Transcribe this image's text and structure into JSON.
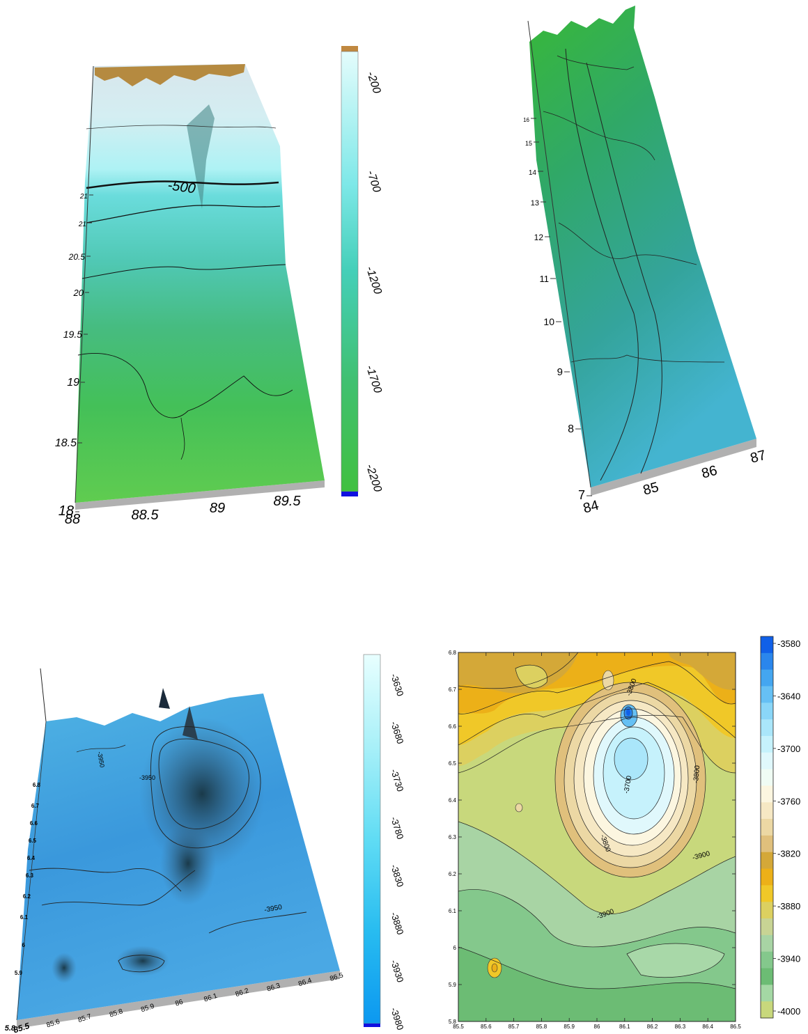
{
  "chart_data": [
    {
      "type": "surface3d",
      "title": "",
      "x_ticks": [
        "88",
        "88.5",
        "89",
        "89.5"
      ],
      "y_ticks": [
        "18",
        "18.5",
        "19",
        "19.5",
        "20",
        "20.5",
        "21",
        "21"
      ],
      "contour_label": "-500",
      "colorbar": {
        "ticks": [
          "-200",
          "-700",
          "-1200",
          "-1700",
          "-2200"
        ],
        "colors": [
          "#c08840",
          "#e4fcfc",
          "#7fe8e8",
          "#40c8c8",
          "#40c090",
          "#40c060",
          "#40c040",
          "#1010e0"
        ]
      }
    },
    {
      "type": "surface3d",
      "title": "",
      "x_ticks": [
        "84",
        "85",
        "86",
        "87"
      ],
      "y_ticks": [
        "7",
        "8",
        "9",
        "10",
        "11",
        "12",
        "13",
        "14",
        "15",
        "16"
      ],
      "colors": [
        "#30c030",
        "#30a870",
        "#40b0c8"
      ]
    },
    {
      "type": "surface3d",
      "title": "",
      "x_ticks": [
        "85.5",
        "85.6",
        "85.7",
        "85.8",
        "85.9",
        "86",
        "86.1",
        "86.2",
        "86.3",
        "86.4",
        "86.5"
      ],
      "y_ticks": [
        "5.8",
        "5.9",
        "6",
        "6.1",
        "6.2",
        "6.3",
        "6.4",
        "6.5",
        "6.6",
        "6.7",
        "6.8"
      ],
      "contour_labels": [
        "-3950",
        "-3950",
        "-3950"
      ],
      "colorbar": {
        "ticks": [
          "-3630",
          "-3680",
          "-3730",
          "-3780",
          "-3830",
          "-3880",
          "-3930",
          "-3980"
        ],
        "colors": [
          "#e8ffff",
          "#b8f4f8",
          "#80e4f4",
          "#40d0f0",
          "#20b4f0",
          "#0898f0",
          "#1010e0"
        ]
      }
    },
    {
      "type": "contour",
      "title": "",
      "xlim": [
        85.5,
        86.5
      ],
      "ylim": [
        5.8,
        6.8
      ],
      "x_ticks": [
        "85.5",
        "85.6",
        "85.7",
        "85.8",
        "85.9",
        "86",
        "86.1",
        "86.2",
        "86.3",
        "86.4",
        "86.5"
      ],
      "y_ticks": [
        "5.8",
        "5.9",
        "6",
        "6.1",
        "6.2",
        "6.3",
        "6.4",
        "6.5",
        "6.6",
        "6.7",
        "6.8"
      ],
      "contour_labels": [
        "-3800",
        "-3700",
        "-3800",
        "-3800",
        "-3900",
        "-3900"
      ],
      "colorbar": {
        "levels": [
          -3580,
          -3600,
          -3620,
          -3640,
          -3660,
          -3680,
          -3700,
          -3720,
          -3740,
          -3760,
          -3780,
          -3800,
          -3820,
          -3840,
          -3860,
          -3880,
          -3900,
          -3920,
          -3940,
          -3960,
          -3980,
          -4000
        ],
        "tick_labels": [
          "-3580",
          "-3640",
          "-3700",
          "-3760",
          "-3820",
          "-3880",
          "-3940",
          "-4000"
        ],
        "colors": [
          "#1060e8",
          "#2a86ec",
          "#44a6f0",
          "#66c0f4",
          "#8ad6f8",
          "#aae6fa",
          "#c6f2fc",
          "#e0f8fc",
          "#f0fcf4",
          "#fcf6e0",
          "#f6e8c4",
          "#ecd8a4",
          "#e0c07c",
          "#d4a838",
          "#ecb018",
          "#f0c828",
          "#dcd060",
          "#c8d494",
          "#a8d4a4",
          "#84c88c",
          "#6cbc74",
          "#a4d8a4",
          "#c8d87c"
        ]
      }
    }
  ]
}
